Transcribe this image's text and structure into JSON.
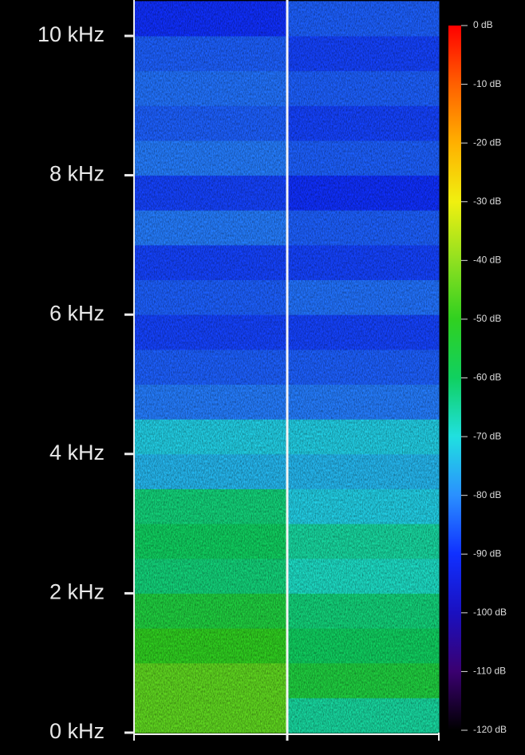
{
  "chart_data": {
    "type": "heatmap",
    "columns": [
      null,
      null
    ],
    "y_bins": [
      0,
      0.5,
      1,
      1.5,
      2,
      2.5,
      3,
      3.5,
      4,
      4.5,
      5,
      5.5,
      6,
      6.5,
      7,
      7.5,
      8,
      8.5,
      9,
      9.5,
      10,
      10.5
    ],
    "z": [
      [
        -45,
        -65
      ],
      [
        -45,
        -55
      ],
      [
        -50,
        -60
      ],
      [
        -55,
        -62
      ],
      [
        -62,
        -68
      ],
      [
        -60,
        -65
      ],
      [
        -62,
        -72
      ],
      [
        -75,
        -75
      ],
      [
        -72,
        -72
      ],
      [
        -82,
        -82
      ],
      [
        -85,
        -85
      ],
      [
        -88,
        -88
      ],
      [
        -85,
        -83
      ],
      [
        -88,
        -88
      ],
      [
        -82,
        -85
      ],
      [
        -88,
        -90
      ],
      [
        -82,
        -85
      ],
      [
        -85,
        -88
      ],
      [
        -83,
        -85
      ],
      [
        -85,
        -88
      ],
      [
        -90,
        -85
      ]
    ],
    "ylim": [
      0,
      10.5
    ],
    "yticks": [
      {
        "value": 0,
        "label": "0 kHz"
      },
      {
        "value": 2,
        "label": "2 kHz"
      },
      {
        "value": 4,
        "label": "4 kHz"
      },
      {
        "value": 6,
        "label": "6 kHz"
      },
      {
        "value": 8,
        "label": "8 kHz"
      },
      {
        "value": 10,
        "label": "10 kHz"
      }
    ],
    "clim": [
      -120,
      0
    ],
    "cticks": [
      {
        "value": 0,
        "label": "0 dB"
      },
      {
        "value": -10,
        "label": "-10 dB"
      },
      {
        "value": -20,
        "label": "-20 dB"
      },
      {
        "value": -30,
        "label": "-30 dB"
      },
      {
        "value": -40,
        "label": "-40 dB"
      },
      {
        "value": -50,
        "label": "-50 dB"
      },
      {
        "value": -60,
        "label": "-60 dB"
      },
      {
        "value": -70,
        "label": "-70 dB"
      },
      {
        "value": -80,
        "label": "-80 dB"
      },
      {
        "value": -90,
        "label": "-90 dB"
      },
      {
        "value": -100,
        "label": "-100 dB"
      },
      {
        "value": -110,
        "label": "-110 dB"
      },
      {
        "value": -120,
        "label": "-120 dB"
      }
    ],
    "colormap": [
      "#000000",
      "#3a0070",
      "#1a10c0",
      "#1030ff",
      "#2a90ff",
      "#20e0e0",
      "#10d060",
      "#30d020",
      "#90e020",
      "#f0f010",
      "#ffb000",
      "#ff6000",
      "#ff0000"
    ]
  }
}
